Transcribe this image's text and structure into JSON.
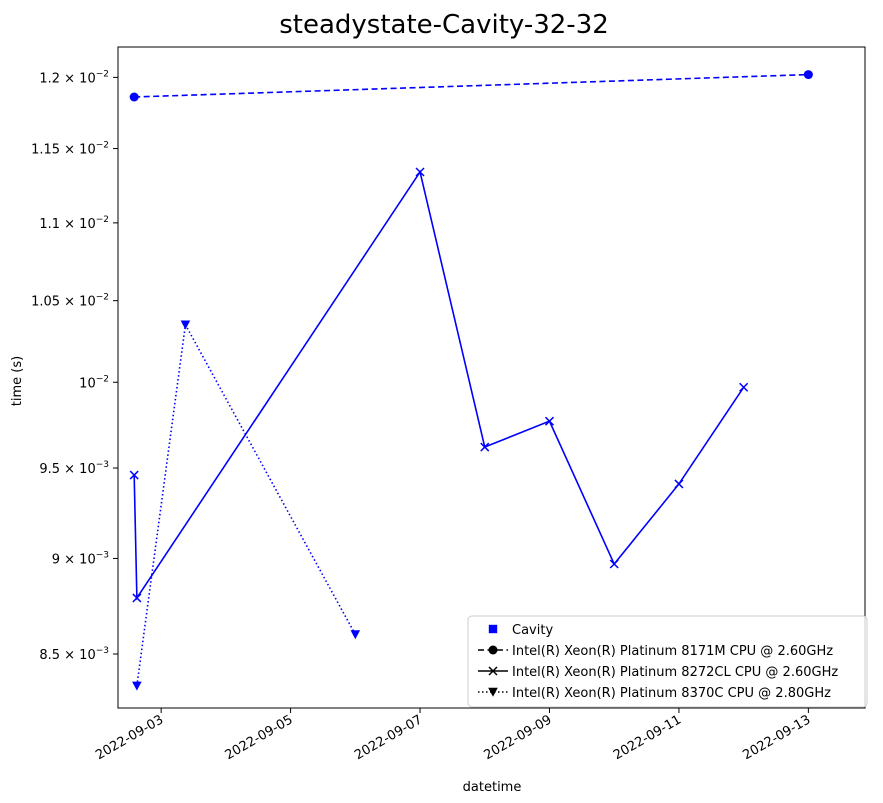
{
  "chart_data": {
    "type": "line",
    "title": "steadystate-Cavity-32-32",
    "xlabel": "datetime",
    "ylabel": "time (s)",
    "yscale": "log",
    "xlim": [
      "2022-09-02T08:00",
      "2022-09-13T21:00"
    ],
    "ylim": [
      0.00823,
      0.01222
    ],
    "x_ticks": [
      {
        "value": "2022-09-03",
        "label": "2022-09-03"
      },
      {
        "value": "2022-09-05",
        "label": "2022-09-05"
      },
      {
        "value": "2022-09-07",
        "label": "2022-09-07"
      },
      {
        "value": "2022-09-09",
        "label": "2022-09-09"
      },
      {
        "value": "2022-09-11",
        "label": "2022-09-11"
      },
      {
        "value": "2022-09-13",
        "label": "2022-09-13"
      }
    ],
    "y_ticks": [
      {
        "value": 0.0085,
        "mantissa": "8.5",
        "exp": "−3"
      },
      {
        "value": 0.009,
        "mantissa": "9",
        "exp": "−3"
      },
      {
        "value": 0.0095,
        "mantissa": "9.5",
        "exp": "−3"
      },
      {
        "value": 0.01,
        "mantissa": "",
        "exp": "−2"
      },
      {
        "value": 0.0105,
        "mantissa": "1.05",
        "exp": "−2"
      },
      {
        "value": 0.011,
        "mantissa": "1.1",
        "exp": "−2"
      },
      {
        "value": 0.0115,
        "mantissa": "1.15",
        "exp": "−2"
      },
      {
        "value": 0.012,
        "mantissa": "1.2",
        "exp": "−2"
      }
    ],
    "grid": false,
    "legend_position": "bottom-right",
    "legend_entries": [
      {
        "label": "Cavity",
        "marker": "square",
        "linestyle": "none"
      },
      {
        "label": "Intel(R) Xeon(R) Platinum 8171M CPU @ 2.60GHz",
        "marker": "circle",
        "linestyle": "dashed"
      },
      {
        "label": "Intel(R) Xeon(R) Platinum 8272CL CPU @ 2.60GHz",
        "marker": "x",
        "linestyle": "solid"
      },
      {
        "label": "Intel(R) Xeon(R) Platinum 8370C CPU @ 2.80GHz",
        "marker": "triangle-down",
        "linestyle": "dotted"
      }
    ],
    "series": [
      {
        "name": "Intel(R) Xeon(R) Platinum 8171M CPU @ 2.60GHz",
        "color": "#0000ff",
        "linestyle": "dashed",
        "marker": "circle",
        "points": [
          {
            "x": "2022-09-02T14:00",
            "y": 0.01186
          },
          {
            "x": "2022-09-13T00:00",
            "y": 0.01202
          }
        ]
      },
      {
        "name": "Intel(R) Xeon(R) Platinum 8272CL CPU @ 2.60GHz",
        "color": "#0000ff",
        "linestyle": "solid",
        "marker": "x",
        "points": [
          {
            "x": "2022-09-02T14:00",
            "y": 0.00946
          },
          {
            "x": "2022-09-02T15:00",
            "y": 0.00879
          },
          {
            "x": "2022-09-07T00:00",
            "y": 0.01134
          },
          {
            "x": "2022-09-08T00:00",
            "y": 0.00962
          },
          {
            "x": "2022-09-09T00:00",
            "y": 0.00977
          },
          {
            "x": "2022-09-10T00:00",
            "y": 0.00897
          },
          {
            "x": "2022-09-11T00:00",
            "y": 0.00941
          },
          {
            "x": "2022-09-12T00:00",
            "y": 0.00997
          }
        ]
      },
      {
        "name": "Intel(R) Xeon(R) Platinum 8370C CPU @ 2.80GHz",
        "color": "#0000ff",
        "linestyle": "dotted",
        "marker": "triangle-down",
        "points": [
          {
            "x": "2022-09-02T15:00",
            "y": 0.00834
          },
          {
            "x": "2022-09-03T09:00",
            "y": 0.01035
          },
          {
            "x": "2022-09-06T00:00",
            "y": 0.0086
          }
        ]
      }
    ]
  }
}
